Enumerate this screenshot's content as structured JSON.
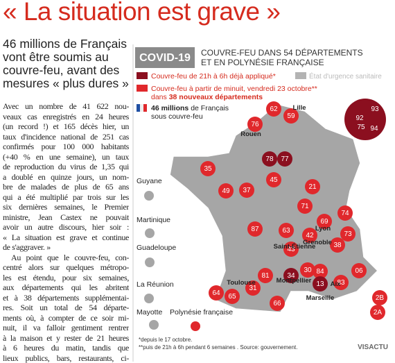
{
  "header": {
    "title": "« La situation est grave »"
  },
  "subhead": [
    "46 millions de Français",
    "vont être soumis au",
    "couvre-feu, avant des",
    "mesures « plus dures »"
  ],
  "body": {
    "paragraphs": [
      [
        "Avec un nombre de 41 622 nou-",
        "veaux cas enregistrés en 24 heures",
        "(un record !) et 165 décès hier, un",
        "taux d'incidence national de 251 cas",
        "confirmés pour 100 000 habitants",
        "(+40 % en une semaine), un taux",
        "de reproduction du virus de 1,35 qui",
        "a doublé en quinze jours, un nom-",
        "bre de malades de plus de 65 ans",
        "qui a été multiplié par trois sur les",
        "six dernières semaines, le Premier",
        "ministre, Jean Castex ne pouvait",
        "avoir un autre discours, hier soir :",
        "« La situation est grave et continue",
        "de s'aggraver. »"
      ],
      [
        "Au point que le couvre-feu, con-",
        "centré alors sur quelques métropo-",
        "les est étendu, pour six semaines,",
        "aux départements qui les abritent",
        "et à 38 départements supplémentai-",
        "res. Soit un total de 54 départe-",
        "ments où, à compter de ce soir mi-",
        "nuit, il va falloir gentiment rentrer",
        "à la maison et y rester de 21 heures",
        "à 6 heures du matin, tandis que",
        "lieux publics, bars, restaurants, ci-"
      ]
    ]
  },
  "infographic": {
    "tag": "COVID-19",
    "title": [
      "COUVRE-FEU DANS 54 DÉPARTEMENTS",
      "ET EN POLYNÉSIE FRANÇAISE"
    ],
    "legend": {
      "applied": "Couvre-feu de 21h à 6h déjà appliqué*",
      "emergency": "État d'urgence sanitaire",
      "new": "Couvre-feu à partir de minuit, vendredi 23 octobre**",
      "new_prefix": "dans ",
      "new_count": "38 nouveaux départements",
      "people_count": "46 millions",
      "people_rest": " de Français",
      "people_line2": "sous couvre-feu"
    },
    "inset": [
      "93",
      "92",
      "75",
      "94"
    ],
    "departments": [
      "62",
      "59",
      "76",
      "78",
      "77",
      "35",
      "49",
      "37",
      "45",
      "21",
      "71",
      "69",
      "74",
      "87",
      "63",
      "42",
      "38",
      "73",
      "43",
      "84",
      "30",
      "34",
      "13",
      "83",
      "06",
      "64",
      "65",
      "31",
      "81",
      "66",
      "2B",
      "2A"
    ],
    "cities": [
      "Lille",
      "Rouen",
      "Lyon",
      "Saint-Étienne",
      "Grenoble",
      "Montpellier",
      "Aix",
      "Marseille",
      "Toulouse"
    ],
    "overseas": [
      "Guyane",
      "Martinique",
      "Guadeloupe",
      "La Réunion",
      "Mayotte",
      "Polynésie française"
    ],
    "footnotes": [
      "*depuis le 17 octobre.",
      "**puis de 21h à 6h pendant 6 semaines . Source: gouvernement."
    ],
    "credit": "VISACTU"
  }
}
